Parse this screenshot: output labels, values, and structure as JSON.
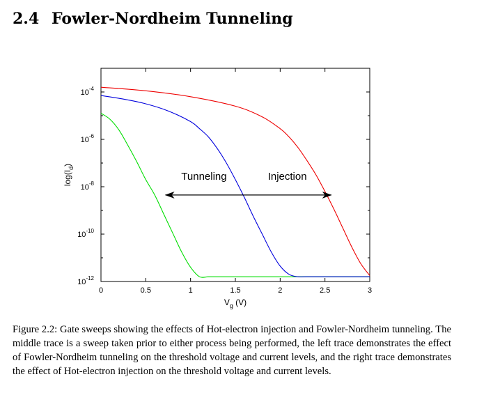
{
  "section": {
    "number": "2.4",
    "title": "Fowler-Nordheim Tunneling"
  },
  "caption": "Figure 2.2: Gate sweeps showing the effects of Hot-electron injection and Fowler-Nordheim tunneling. The middle trace is a sweep taken prior to either process being performed, the left trace demonstrates the effect of Fowler-Nordheim tunneling on the threshold voltage and current levels, and the right trace demonstrates the effect of Hot-electron injection on the threshold voltage and current levels.",
  "chart_data": {
    "type": "line",
    "title": "",
    "xlabel": {
      "main": "V",
      "sub": "g",
      "unit": " (V)"
    },
    "ylabel": {
      "main": "log(I",
      "sub": "d",
      "end": ")"
    },
    "xlim": [
      0,
      3
    ],
    "ylim_log10": [
      -12,
      -3
    ],
    "y_scale": "log",
    "grid": false,
    "x_ticks": [
      {
        "value": 0,
        "label": "0"
      },
      {
        "value": 0.5,
        "label": "0.5"
      },
      {
        "value": 1,
        "label": "1"
      },
      {
        "value": 1.5,
        "label": "1.5"
      },
      {
        "value": 2,
        "label": "2"
      },
      {
        "value": 2.5,
        "label": "2.5"
      },
      {
        "value": 3,
        "label": "3"
      }
    ],
    "y_ticks": [
      {
        "exp": -12,
        "base": "10",
        "label": "-12"
      },
      {
        "exp": -10,
        "base": "10",
        "label": "-10"
      },
      {
        "exp": -8,
        "base": "10",
        "label": "-8"
      },
      {
        "exp": -6,
        "base": "10",
        "label": "-6"
      },
      {
        "exp": -4,
        "base": "10",
        "label": "-4"
      }
    ],
    "series": [
      {
        "color": "#00dd00",
        "x": [
          0,
          0.1,
          0.2,
          0.3,
          0.4,
          0.5,
          0.6,
          0.7,
          0.8,
          0.9,
          1.0,
          1.1,
          1.2,
          1.3,
          1.5,
          2.0,
          2.5,
          3.0
        ],
        "log10_y": [
          -4.9,
          -5.15,
          -5.6,
          -6.25,
          -6.95,
          -7.7,
          -8.35,
          -9.15,
          -9.95,
          -10.75,
          -11.4,
          -11.8,
          -11.8,
          -11.8,
          -11.8,
          -11.8,
          -11.8,
          -11.8
        ]
      },
      {
        "color": "#0000dd",
        "x": [
          0,
          0.25,
          0.5,
          0.75,
          1.0,
          1.1,
          1.2,
          1.3,
          1.4,
          1.5,
          1.6,
          1.7,
          1.8,
          1.9,
          2.0,
          2.1,
          2.2,
          2.3,
          2.5,
          3.0
        ],
        "log10_y": [
          -4.15,
          -4.3,
          -4.5,
          -4.8,
          -5.25,
          -5.55,
          -5.9,
          -6.4,
          -7.0,
          -7.7,
          -8.45,
          -9.25,
          -10.0,
          -10.75,
          -11.35,
          -11.7,
          -11.8,
          -11.8,
          -11.8,
          -11.8
        ]
      },
      {
        "color": "#ee0000",
        "x": [
          0,
          0.5,
          1.0,
          1.5,
          1.8,
          2.0,
          2.1,
          2.2,
          2.3,
          2.4,
          2.5,
          2.6,
          2.7,
          2.8,
          2.9,
          3.0
        ],
        "log10_y": [
          -3.8,
          -3.95,
          -4.2,
          -4.6,
          -5.05,
          -5.55,
          -5.9,
          -6.35,
          -6.9,
          -7.5,
          -8.2,
          -8.95,
          -9.75,
          -10.55,
          -11.25,
          -11.75
        ]
      }
    ],
    "annotations": [
      {
        "text": "Tunneling",
        "x": 1.15,
        "log10_y": -7.7
      },
      {
        "text": "Injection",
        "x": 2.08,
        "log10_y": -7.7
      }
    ],
    "arrows": [
      {
        "name": "tunneling-arrow",
        "from_x": 1.6,
        "to_x": 0.72,
        "log10_y": -8.35
      },
      {
        "name": "injection-arrow",
        "from_x": 1.6,
        "to_x": 2.57,
        "log10_y": -8.35
      }
    ]
  }
}
